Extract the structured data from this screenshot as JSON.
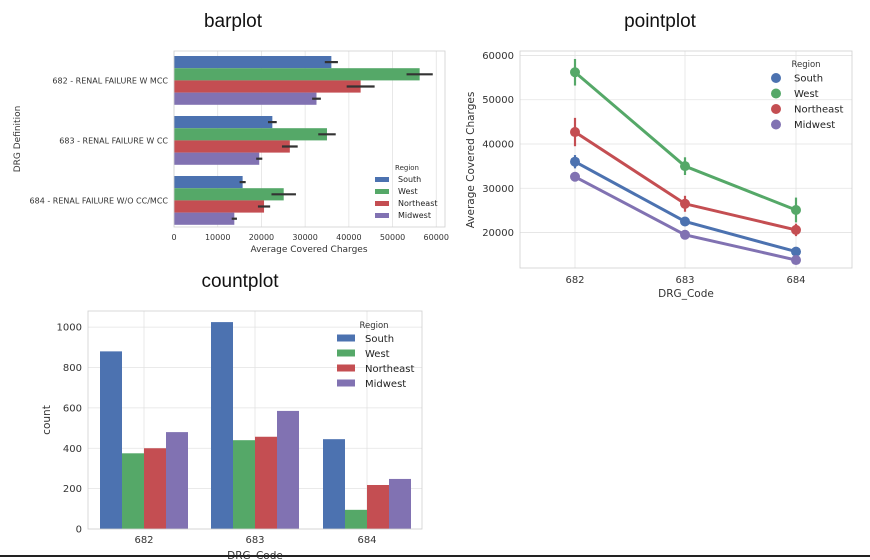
{
  "colors": {
    "South": "#4c72b0",
    "West": "#55a868",
    "Northeast": "#c44e52",
    "Midwest": "#8172b2",
    "grid": "#e3e3e3",
    "errorbar": "#333333"
  },
  "chart_data": [
    {
      "type": "bar",
      "orientation": "horizontal",
      "title": "barplot",
      "xlabel": "Average Covered Charges",
      "ylabel": "DRG Definition",
      "categories": [
        "682 - RENAL FAILURE W MCC",
        "683 - RENAL FAILURE W CC",
        "684 - RENAL FAILURE W/O CC/MCC"
      ],
      "xlim": [
        0,
        62000
      ],
      "xticks": [
        0,
        10000,
        20000,
        30000,
        40000,
        50000,
        60000
      ],
      "legend_title": "Region",
      "legend_position": "bottom-right",
      "series": [
        {
          "name": "South",
          "values": [
            36000,
            22500,
            15700
          ],
          "err": [
            1500,
            1000,
            700
          ]
        },
        {
          "name": "West",
          "values": [
            56200,
            35000,
            25100
          ],
          "err": [
            3000,
            2000,
            2800
          ]
        },
        {
          "name": "Northeast",
          "values": [
            42700,
            26500,
            20600
          ],
          "err": [
            3200,
            1800,
            1400
          ]
        },
        {
          "name": "Midwest",
          "values": [
            32600,
            19500,
            13800
          ],
          "err": [
            1000,
            700,
            600
          ]
        }
      ]
    },
    {
      "type": "line",
      "title": "pointplot",
      "xlabel": "DRG_Code",
      "ylabel": "Average Covered Charges",
      "x": [
        "682",
        "683",
        "684"
      ],
      "ylim": [
        12000,
        61000
      ],
      "yticks": [
        20000,
        30000,
        40000,
        50000,
        60000
      ],
      "legend_title": "Region",
      "legend_position": "top-right",
      "series": [
        {
          "name": "South",
          "values": [
            36000,
            22500,
            15700
          ],
          "err": [
            1500,
            1000,
            700
          ]
        },
        {
          "name": "West",
          "values": [
            56200,
            35000,
            25100
          ],
          "err": [
            3000,
            2000,
            2800
          ]
        },
        {
          "name": "Northeast",
          "values": [
            42700,
            26500,
            20600
          ],
          "err": [
            3200,
            1800,
            1400
          ]
        },
        {
          "name": "Midwest",
          "values": [
            32600,
            19500,
            13800
          ],
          "err": [
            1000,
            700,
            600
          ]
        }
      ]
    },
    {
      "type": "bar",
      "title": "countplot",
      "xlabel": "DRG_Code",
      "ylabel": "count",
      "categories": [
        "682",
        "683",
        "684"
      ],
      "ylim": [
        0,
        1080
      ],
      "yticks": [
        0,
        200,
        400,
        600,
        800,
        1000
      ],
      "legend_title": "Region",
      "legend_position": "top-right",
      "series": [
        {
          "name": "South",
          "values": [
            880,
            1025,
            445
          ]
        },
        {
          "name": "West",
          "values": [
            375,
            440,
            95
          ]
        },
        {
          "name": "Northeast",
          "values": [
            400,
            457,
            218
          ]
        },
        {
          "name": "Midwest",
          "values": [
            480,
            585,
            248
          ]
        }
      ]
    }
  ]
}
